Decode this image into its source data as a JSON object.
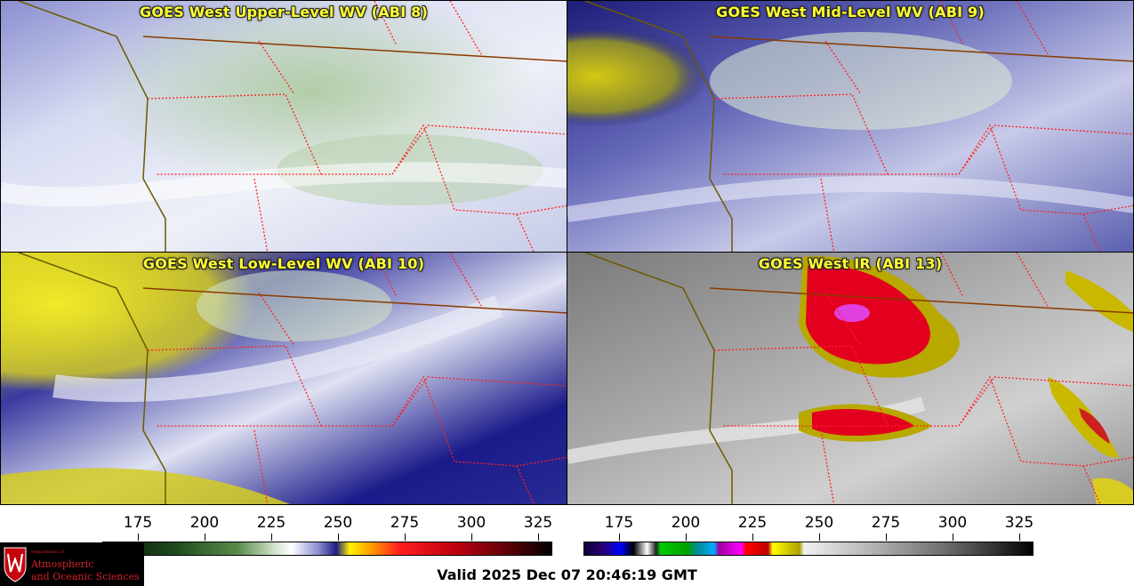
{
  "panels": [
    {
      "title": "GOES West Upper-Level WV (ABI 8)"
    },
    {
      "title": "GOES West Mid-Level WV (ABI 9)"
    },
    {
      "title": "GOES West Low-Level WV (ABI 10)"
    },
    {
      "title": "GOES West IR (ABI 13)"
    }
  ],
  "wv_colorbar": {
    "ticks": [
      "175",
      "200",
      "225",
      "250",
      "275",
      "300",
      "325"
    ]
  },
  "ir_colorbar": {
    "ticks": [
      "175",
      "200",
      "225",
      "250",
      "275",
      "300",
      "325"
    ]
  },
  "logo": {
    "line1": "Department of",
    "line2": "Atmospheric",
    "line3": "and Oceanic Sciences"
  },
  "valid_text": "Valid 2025 Dec 07 20:46:19 GMT",
  "colors": {
    "title": "#ffff33",
    "border_state": "#ff2020",
    "border_country": "#8b3a00",
    "coast": "#6b5b00"
  }
}
